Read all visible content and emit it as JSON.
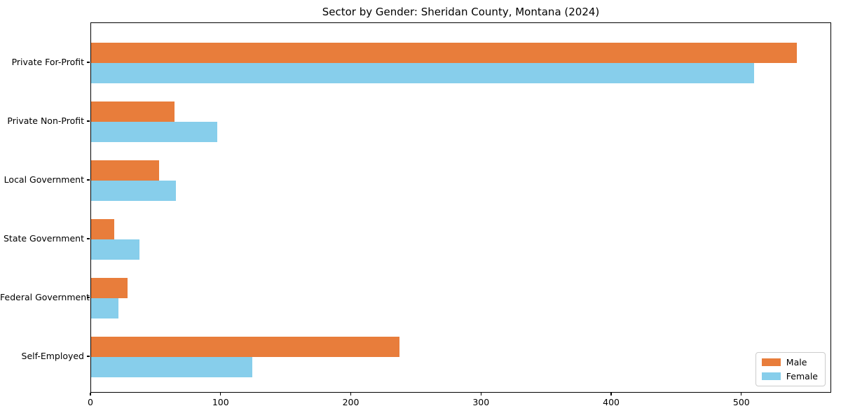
{
  "chart_data": {
    "type": "bar",
    "orientation": "horizontal",
    "title": "Sector by Gender: Sheridan County, Montana (2024)",
    "categories": [
      "Private For-Profit",
      "Private Non-Profit",
      "Local Government",
      "State Government",
      "Federal Government",
      "Self-Employed"
    ],
    "series": [
      {
        "name": "Male",
        "color": "#e87d3b",
        "values": [
          542,
          64,
          52,
          18,
          28,
          237
        ]
      },
      {
        "name": "Female",
        "color": "#87ceeb",
        "values": [
          509,
          97,
          65,
          37,
          21,
          124
        ]
      }
    ],
    "xlabel": "",
    "ylabel": "",
    "xlim": [
      0,
      569
    ],
    "xticks": [
      "0",
      "100",
      "200",
      "300",
      "400",
      "500"
    ],
    "xtick_values": [
      0,
      100,
      200,
      300,
      400,
      500
    ],
    "grid": false,
    "legend_position": "lower right",
    "legend_labels": [
      "Male",
      "Female"
    ]
  }
}
